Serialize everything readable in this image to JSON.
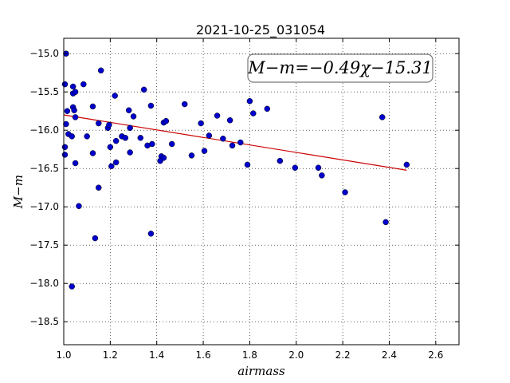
{
  "chart_data": {
    "type": "scatter",
    "title": "2021-10-25_031054",
    "xlabel": "airmass",
    "ylabel": "M−m",
    "xlim": [
      1.0,
      2.7
    ],
    "ylim": [
      -18.8,
      -14.8
    ],
    "y_inverted": true,
    "grid": true,
    "xticks": [
      1.0,
      1.2,
      1.4,
      1.6,
      1.8,
      2.0,
      2.2,
      2.4,
      2.6
    ],
    "xtick_labels": [
      "1.0",
      "1.2",
      "1.4",
      "1.6",
      "1.8",
      "2.0",
      "2.2",
      "2.4",
      "2.6"
    ],
    "yticks": [
      -15.0,
      -15.5,
      -16.0,
      -16.5,
      -17.0,
      -17.5,
      -18.0,
      -18.5
    ],
    "ytick_labels": [
      "−15.0",
      "−15.5",
      "−16.0",
      "−16.5",
      "−17.0",
      "−17.5",
      "−18.0",
      "−18.5"
    ],
    "annotation": "M−m=−0.49χ−15.31",
    "fit": {
      "slope": -0.49,
      "intercept": -15.31,
      "x_range": [
        1.0,
        2.475
      ],
      "color": "#cc0000"
    },
    "marker_color": "#0000cc",
    "points": [
      {
        "x": 1.01,
        "y": -15.0
      },
      {
        "x": 1.005,
        "y": -15.4
      },
      {
        "x": 1.04,
        "y": -15.43
      },
      {
        "x": 1.04,
        "y": -15.52
      },
      {
        "x": 1.05,
        "y": -15.5
      },
      {
        "x": 1.085,
        "y": -15.4
      },
      {
        "x": 1.16,
        "y": -15.22
      },
      {
        "x": 1.015,
        "y": -15.75
      },
      {
        "x": 1.04,
        "y": -15.7
      },
      {
        "x": 1.045,
        "y": -15.74
      },
      {
        "x": 1.05,
        "y": -15.83
      },
      {
        "x": 1.01,
        "y": -15.92
      },
      {
        "x": 1.02,
        "y": -16.05
      },
      {
        "x": 1.035,
        "y": -16.08
      },
      {
        "x": 1.005,
        "y": -16.22
      },
      {
        "x": 1.005,
        "y": -16.32
      },
      {
        "x": 1.05,
        "y": -16.43
      },
      {
        "x": 1.1,
        "y": -16.08
      },
      {
        "x": 1.125,
        "y": -15.69
      },
      {
        "x": 1.15,
        "y": -15.91
      },
      {
        "x": 1.19,
        "y": -15.97
      },
      {
        "x": 1.195,
        "y": -15.93
      },
      {
        "x": 1.22,
        "y": -15.55
      },
      {
        "x": 1.125,
        "y": -16.3
      },
      {
        "x": 1.2,
        "y": -16.22
      },
      {
        "x": 1.225,
        "y": -16.14
      },
      {
        "x": 1.25,
        "y": -16.08
      },
      {
        "x": 1.265,
        "y": -16.1
      },
      {
        "x": 1.225,
        "y": -16.42
      },
      {
        "x": 1.205,
        "y": -16.47
      },
      {
        "x": 1.28,
        "y": -15.74
      },
      {
        "x": 1.3,
        "y": -15.82
      },
      {
        "x": 1.285,
        "y": -15.97
      },
      {
        "x": 1.285,
        "y": -16.29
      },
      {
        "x": 1.33,
        "y": -16.1
      },
      {
        "x": 1.345,
        "y": -15.47
      },
      {
        "x": 1.36,
        "y": -16.2
      },
      {
        "x": 1.375,
        "y": -15.68
      },
      {
        "x": 1.38,
        "y": -16.18
      },
      {
        "x": 1.43,
        "y": -15.9
      },
      {
        "x": 1.44,
        "y": -15.88
      },
      {
        "x": 1.465,
        "y": -16.18
      },
      {
        "x": 1.42,
        "y": -16.34
      },
      {
        "x": 1.43,
        "y": -16.36
      },
      {
        "x": 1.415,
        "y": -16.4
      },
      {
        "x": 1.52,
        "y": -15.66
      },
      {
        "x": 1.55,
        "y": -16.33
      },
      {
        "x": 1.59,
        "y": -15.91
      },
      {
        "x": 1.605,
        "y": -16.27
      },
      {
        "x": 1.625,
        "y": -16.07
      },
      {
        "x": 1.66,
        "y": -15.81
      },
      {
        "x": 1.685,
        "y": -16.11
      },
      {
        "x": 1.715,
        "y": -15.87
      },
      {
        "x": 1.725,
        "y": -16.2
      },
      {
        "x": 1.76,
        "y": -16.16
      },
      {
        "x": 1.8,
        "y": -15.62
      },
      {
        "x": 1.815,
        "y": -15.78
      },
      {
        "x": 1.79,
        "y": -16.45
      },
      {
        "x": 1.875,
        "y": -15.72
      },
      {
        "x": 1.93,
        "y": -16.4
      },
      {
        "x": 1.995,
        "y": -16.49
      },
      {
        "x": 2.095,
        "y": -16.49
      },
      {
        "x": 2.11,
        "y": -16.59
      },
      {
        "x": 2.21,
        "y": -16.81
      },
      {
        "x": 2.37,
        "y": -15.83
      },
      {
        "x": 2.385,
        "y": -17.2
      },
      {
        "x": 2.475,
        "y": -16.45
      },
      {
        "x": 1.065,
        "y": -16.99
      },
      {
        "x": 1.15,
        "y": -16.75
      },
      {
        "x": 1.135,
        "y": -17.41
      },
      {
        "x": 1.375,
        "y": -17.35
      },
      {
        "x": 1.035,
        "y": -18.04
      }
    ]
  }
}
